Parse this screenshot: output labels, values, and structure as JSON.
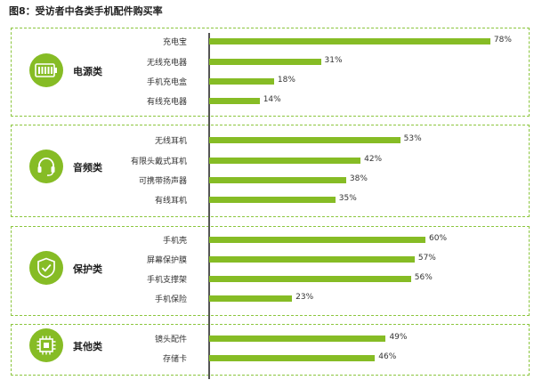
{
  "title": "图8：受访者中各类手机配件购买率",
  "colors": {
    "bar": "#86bc25",
    "border": "#8cc63f"
  },
  "groups": [
    {
      "name": "电源类",
      "icon": "battery-icon"
    },
    {
      "name": "音频类",
      "icon": "headset-icon"
    },
    {
      "name": "保护类",
      "icon": "shield-icon"
    },
    {
      "name": "其他类",
      "icon": "chip-icon"
    }
  ],
  "chart_data": {
    "type": "bar",
    "orientation": "horizontal",
    "title": "图8：受访者中各类手机配件购买率",
    "xlim": [
      0,
      100
    ],
    "unit": "%",
    "categories": [
      "充电宝",
      "无线充电器",
      "手机充电盒",
      "有线充电器",
      "无线耳机",
      "有限头戴式耳机",
      "可携带扬声器",
      "有线耳机",
      "手机壳",
      "屏幕保护膜",
      "手机支撑架",
      "手机保险",
      "镜头配件",
      "存储卡"
    ],
    "values": [
      78,
      31,
      18,
      14,
      53,
      42,
      38,
      35,
      60,
      57,
      56,
      23,
      49,
      46
    ],
    "value_labels": [
      "78%",
      "31%",
      "18%",
      "14%",
      "53%",
      "42%",
      "38%",
      "35%",
      "60%",
      "57%",
      "56%",
      "23%",
      "49%",
      "46%"
    ],
    "grid": false
  }
}
